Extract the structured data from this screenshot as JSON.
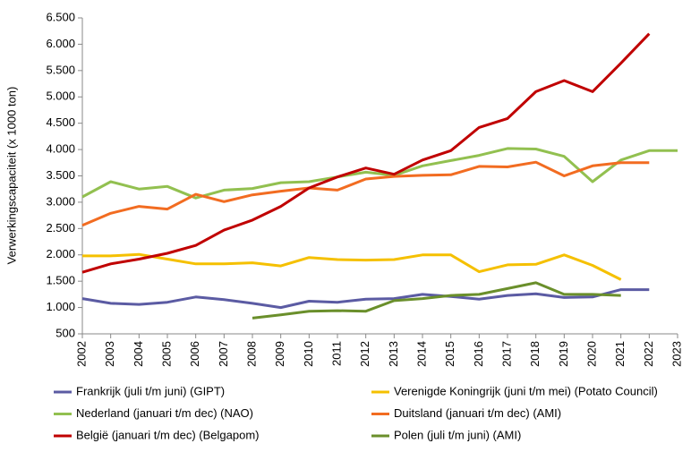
{
  "chart_data": {
    "type": "line",
    "y_label": "Verwerkingscapaciteit (x 1000 ton)",
    "x": [
      2002,
      2003,
      2004,
      2005,
      2006,
      2007,
      2008,
      2009,
      2010,
      2011,
      2012,
      2013,
      2014,
      2015,
      2016,
      2017,
      2018,
      2019,
      2020,
      2021,
      2022,
      2023
    ],
    "xlim": [
      2002,
      2023
    ],
    "xticks": [
      2002,
      2003,
      2004,
      2005,
      2006,
      2007,
      2008,
      2009,
      2010,
      2011,
      2012,
      2013,
      2014,
      2015,
      2016,
      2017,
      2018,
      2019,
      2020,
      2021,
      2022,
      2023
    ],
    "ylim": [
      500,
      6500
    ],
    "yticks": [
      500,
      {
        "value": 1000,
        "label": "1.000"
      },
      {
        "value": 1500,
        "label": "1.500"
      },
      {
        "value": 2000,
        "label": "2.000"
      },
      {
        "value": 2500,
        "label": "2.500"
      },
      {
        "value": 3000,
        "label": "3.000"
      },
      {
        "value": 3500,
        "label": "3.500"
      },
      {
        "value": 4000,
        "label": "4.000"
      },
      {
        "value": 4500,
        "label": "4.500"
      },
      {
        "value": 5000,
        "label": "5.000"
      },
      {
        "value": 5500,
        "label": "5.500"
      },
      {
        "value": 6000,
        "label": "6.000"
      },
      {
        "value": 6500,
        "label": "6.500"
      }
    ],
    "grid": false,
    "legend": "bottom",
    "series": [
      {
        "name": "Frankrijk (juli t/m juni) (GIPT)",
        "color": "#5b5ba3",
        "values": [
          1170,
          1080,
          1060,
          1100,
          1200,
          1150,
          1080,
          1000,
          1120,
          1100,
          1160,
          1170,
          1250,
          1210,
          1160,
          1230,
          1260,
          1190,
          1200,
          1340,
          1340,
          null
        ]
      },
      {
        "name": "Verenigde Koningrijk (juni t/m mei) (Potato Council)",
        "color": "#f5c000",
        "values": [
          1980,
          1980,
          2010,
          1920,
          1830,
          1830,
          1850,
          1790,
          1950,
          1910,
          1900,
          1910,
          2000,
          2000,
          1680,
          1810,
          1820,
          2000,
          1800,
          1530,
          null,
          null
        ]
      },
      {
        "name": "Nederland (januari t/m dec) (NAO)",
        "color": "#92c050",
        "values": [
          3100,
          3390,
          3250,
          3300,
          3080,
          3230,
          3260,
          3370,
          3390,
          3480,
          3570,
          3510,
          3690,
          3790,
          3890,
          4020,
          4010,
          3870,
          3390,
          3800,
          3980,
          3980
        ]
      },
      {
        "name": "Duitsland (januari t/m dec) (AMI)",
        "color": "#f26c21",
        "values": [
          2560,
          2790,
          2920,
          2870,
          3150,
          3010,
          3140,
          3210,
          3270,
          3230,
          3440,
          3490,
          3510,
          3520,
          3680,
          3670,
          3760,
          3500,
          3690,
          3750,
          3750,
          null
        ]
      },
      {
        "name": "België (januari t/m dec) (Belgapom)",
        "color": "#c00000",
        "values": [
          1670,
          1830,
          1920,
          2030,
          2180,
          2470,
          2660,
          2920,
          3270,
          3480,
          3650,
          3530,
          3800,
          3980,
          4420,
          4590,
          5100,
          5310,
          5100,
          5640,
          6200,
          null
        ]
      },
      {
        "name": "Polen (juli t/m juni) (AMI)",
        "color": "#6a8f2b",
        "values": [
          null,
          null,
          null,
          null,
          null,
          null,
          800,
          860,
          930,
          940,
          930,
          1130,
          1170,
          1230,
          1250,
          1360,
          1470,
          1250,
          1250,
          1230,
          null,
          null
        ]
      }
    ]
  }
}
